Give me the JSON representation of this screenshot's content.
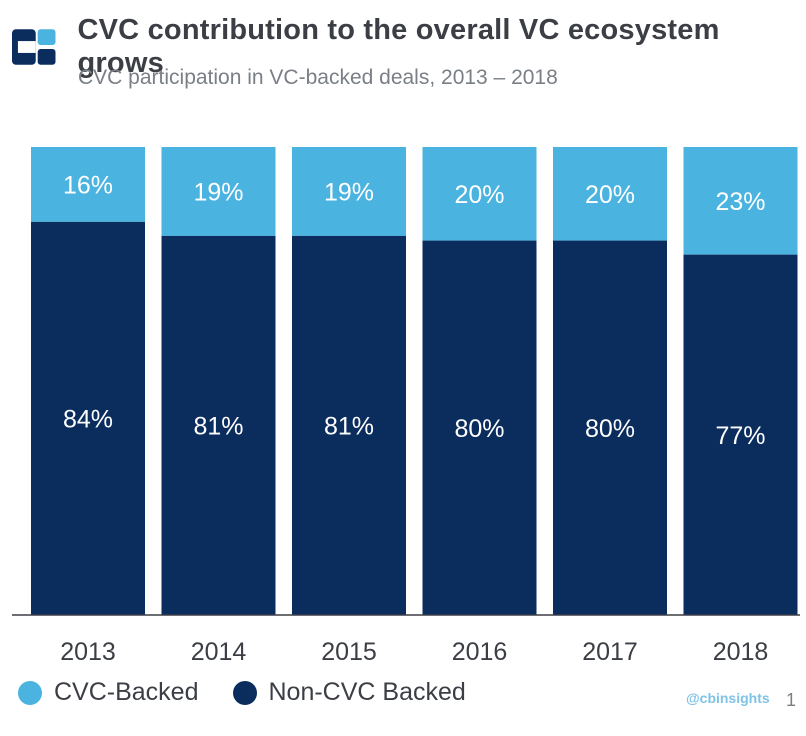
{
  "header": {
    "title": "CVC contribution to the overall VC ecosystem grows",
    "subtitle": "CVC participation in VC-backed deals, 2013 – 2018"
  },
  "colors": {
    "cvc": "#4ab3e0",
    "non_cvc": "#0b2d5e",
    "logo_left": "#0b2d5e",
    "logo_right": "#4ab3e0"
  },
  "chart_data": {
    "type": "bar",
    "stacked": true,
    "percent_of_total": true,
    "categories": [
      "2013",
      "2014",
      "2015",
      "2016",
      "2017",
      "2018"
    ],
    "series": [
      {
        "name": "CVC-Backed",
        "values": [
          16,
          19,
          19,
          20,
          20,
          23
        ],
        "labels": [
          "16%",
          "19%",
          "19%",
          "20%",
          "20%",
          "23%"
        ]
      },
      {
        "name": "Non-CVC Backed",
        "values": [
          84,
          81,
          81,
          80,
          80,
          77
        ],
        "labels": [
          "84%",
          "81%",
          "81%",
          "80%",
          "80%",
          "77%"
        ]
      }
    ],
    "ylim": [
      0,
      100
    ],
    "legend_position": "bottom-left"
  },
  "legend": {
    "items": [
      {
        "label": "CVC-Backed"
      },
      {
        "label": "Non-CVC Backed"
      }
    ]
  },
  "footer": {
    "credit": "@cbinsights",
    "page": "1"
  }
}
